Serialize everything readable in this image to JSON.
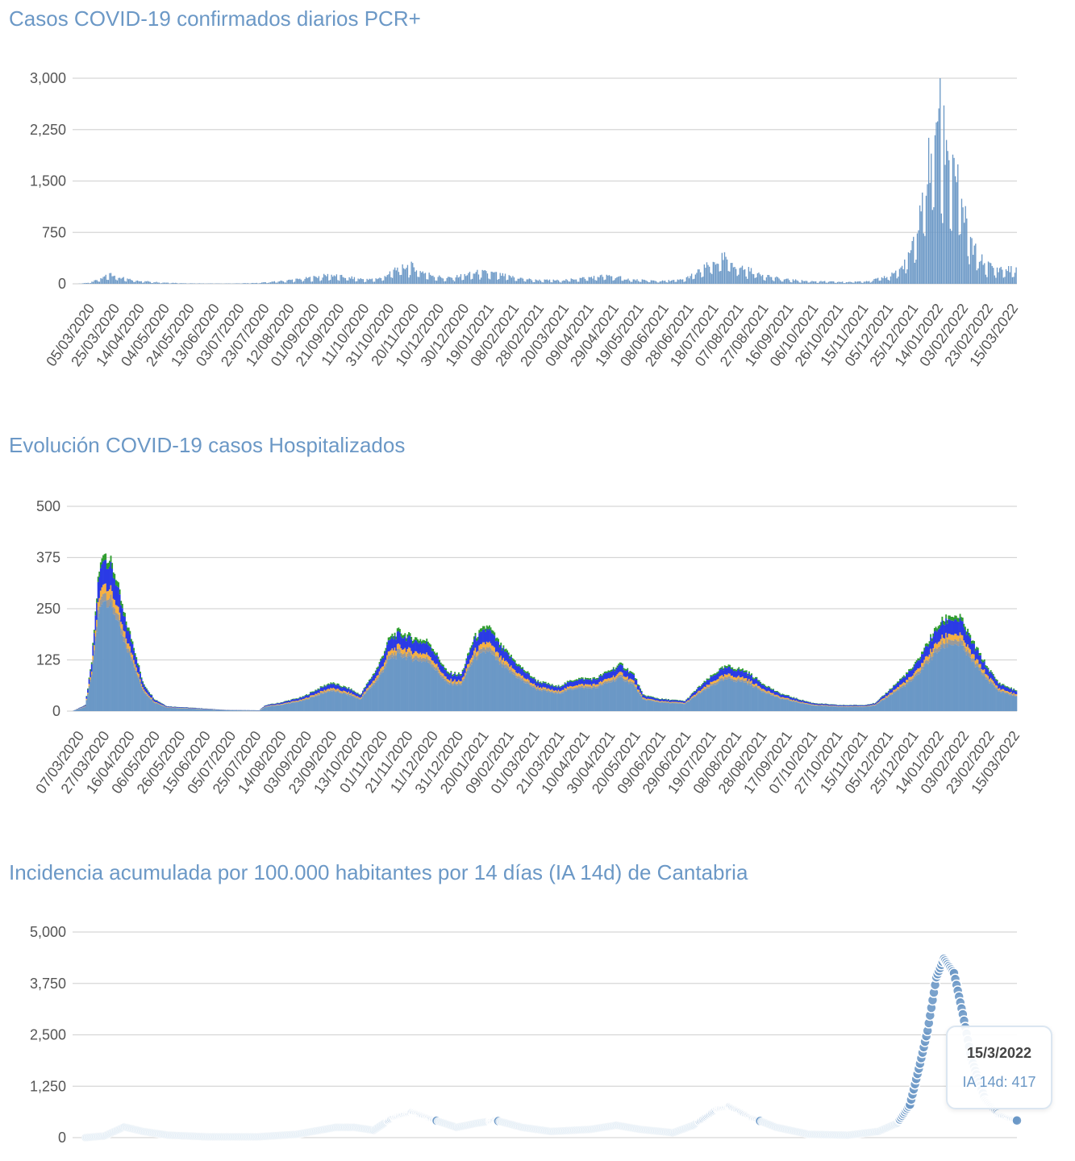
{
  "charts": [
    {
      "title": "Casos COVID-19 confirmados diarios PCR+",
      "chart_data": {
        "type": "bar",
        "title": "Casos COVID-19 confirmados diarios PCR+",
        "xlabel": "",
        "ylabel": "",
        "ylim": [
          0,
          3000
        ],
        "yticks": [
          "0",
          "750",
          "1,500",
          "2,250",
          "3,000"
        ],
        "ytick_values": [
          0,
          750,
          1500,
          2250,
          3000
        ],
        "x_start": "2020-03-05",
        "x_end": "2022-03-15",
        "xticks": [
          "05/03/2020",
          "25/03/2020",
          "14/04/2020",
          "04/05/2020",
          "24/05/2020",
          "13/06/2020",
          "03/07/2020",
          "23/07/2020",
          "12/08/2020",
          "01/09/2020",
          "21/09/2020",
          "11/10/2020",
          "31/10/2020",
          "20/11/2020",
          "10/12/2020",
          "30/12/2020",
          "19/01/2021",
          "08/02/2021",
          "28/02/2021",
          "20/03/2021",
          "09/04/2021",
          "29/04/2021",
          "19/05/2021",
          "08/06/2021",
          "28/06/2021",
          "18/07/2021",
          "07/08/2021",
          "27/08/2021",
          "16/09/2021",
          "06/10/2021",
          "26/10/2021",
          "15/11/2021",
          "05/12/2021",
          "25/12/2021",
          "14/01/2022",
          "03/02/2022",
          "23/02/2022",
          "15/03/2022"
        ],
        "color": "#6b98c6",
        "series": [
          {
            "values_at": [
              [
                "2020-03-05",
                0
              ],
              [
                "2020-03-15",
                20
              ],
              [
                "2020-03-25",
                90
              ],
              [
                "2020-03-30",
                170
              ],
              [
                "2020-04-05",
                100
              ],
              [
                "2020-04-15",
                60
              ],
              [
                "2020-04-25",
                40
              ],
              [
                "2020-05-10",
                20
              ],
              [
                "2020-06-01",
                6
              ],
              [
                "2020-07-01",
                4
              ],
              [
                "2020-07-25",
                12
              ],
              [
                "2020-08-12",
                40
              ],
              [
                "2020-09-01",
                80
              ],
              [
                "2020-09-20",
                130
              ],
              [
                "2020-10-01",
                100
              ],
              [
                "2020-10-20",
                60
              ],
              [
                "2020-10-31",
                90
              ],
              [
                "2020-11-10",
                210
              ],
              [
                "2020-11-22",
                270
              ],
              [
                "2020-12-05",
                150
              ],
              [
                "2020-12-20",
                80
              ],
              [
                "2020-12-30",
                110
              ],
              [
                "2021-01-15",
                170
              ],
              [
                "2021-01-25",
                160
              ],
              [
                "2021-02-10",
                100
              ],
              [
                "2021-02-28",
                55
              ],
              [
                "2021-03-20",
                50
              ],
              [
                "2021-04-05",
                80
              ],
              [
                "2021-04-20",
                110
              ],
              [
                "2021-04-29",
                120
              ],
              [
                "2021-05-15",
                60
              ],
              [
                "2021-06-08",
                40
              ],
              [
                "2021-06-25",
                60
              ],
              [
                "2021-07-05",
                150
              ],
              [
                "2021-07-18",
                300
              ],
              [
                "2021-07-28",
                380
              ],
              [
                "2021-08-08",
                250
              ],
              [
                "2021-08-25",
                150
              ],
              [
                "2021-09-10",
                70
              ],
              [
                "2021-10-01",
                40
              ],
              [
                "2021-11-01",
                25
              ],
              [
                "2021-11-20",
                45
              ],
              [
                "2021-12-05",
                120
              ],
              [
                "2021-12-15",
                240
              ],
              [
                "2021-12-25",
                600
              ],
              [
                "2022-01-01",
                1400
              ],
              [
                "2022-01-08",
                2000
              ],
              [
                "2022-01-12",
                2660
              ],
              [
                "2022-01-18",
                2100
              ],
              [
                "2022-01-25",
                1800
              ],
              [
                "2022-02-01",
                1100
              ],
              [
                "2022-02-08",
                550
              ],
              [
                "2022-02-18",
                300
              ],
              [
                "2022-02-28",
                220
              ],
              [
                "2022-03-15",
                210
              ]
            ]
          }
        ]
      }
    },
    {
      "title": "Evolución COVID-19 casos  Hospitalizados",
      "chart_data": {
        "type": "bar",
        "stacked": true,
        "title": "Evolución COVID-19 casos  Hospitalizados",
        "xlabel": "",
        "ylabel": "",
        "ylim": [
          0,
          500
        ],
        "yticks": [
          "0",
          "125",
          "250",
          "375",
          "500"
        ],
        "ytick_values": [
          0,
          125,
          250,
          375,
          500
        ],
        "x_start": "2020-03-07",
        "x_end": "2022-03-15",
        "xticks": [
          "07/03/2020",
          "27/03/2020",
          "16/04/2020",
          "06/05/2020",
          "26/05/2020",
          "15/06/2020",
          "05/07/2020",
          "25/07/2020",
          "14/08/2020",
          "03/09/2020",
          "23/09/2020",
          "13/10/2020",
          "01/11/2020",
          "21/11/2020",
          "11/12/2020",
          "31/12/2020",
          "20/01/2021",
          "09/02/2021",
          "01/03/2021",
          "21/03/2021",
          "10/04/2021",
          "30/04/2021",
          "20/05/2021",
          "09/06/2021",
          "29/06/2021",
          "19/07/2021",
          "08/08/2021",
          "28/08/2021",
          "17/09/2021",
          "07/10/2021",
          "27/10/2021",
          "15/11/2021",
          "05/12/2021",
          "25/12/2021",
          "14/01/2022",
          "03/02/2022",
          "23/02/2022",
          "15/03/2022"
        ],
        "colors": [
          "#6b98c6",
          "#9a9a9a",
          "#f5b042",
          "#2a3ae6",
          "#2f9e2f"
        ],
        "total": [
          [
            "2020-03-07",
            0
          ],
          [
            "2020-03-17",
            15
          ],
          [
            "2020-03-22",
            120
          ],
          [
            "2020-03-27",
            320
          ],
          [
            "2020-03-31",
            395
          ],
          [
            "2020-04-05",
            370
          ],
          [
            "2020-04-10",
            330
          ],
          [
            "2020-04-16",
            240
          ],
          [
            "2020-04-24",
            160
          ],
          [
            "2020-05-01",
            70
          ],
          [
            "2020-05-10",
            30
          ],
          [
            "2020-05-20",
            12
          ],
          [
            "2020-06-10",
            8
          ],
          [
            "2020-07-05",
            3
          ],
          [
            "2020-07-31",
            2
          ],
          [
            "2020-08-05",
            15
          ],
          [
            "2020-08-15",
            20
          ],
          [
            "2020-09-03",
            35
          ],
          [
            "2020-09-15",
            55
          ],
          [
            "2020-09-25",
            70
          ],
          [
            "2020-10-10",
            55
          ],
          [
            "2020-10-18",
            40
          ],
          [
            "2020-11-01",
            110
          ],
          [
            "2020-11-10",
            180
          ],
          [
            "2020-11-17",
            195
          ],
          [
            "2020-11-28",
            180
          ],
          [
            "2020-12-11",
            170
          ],
          [
            "2020-12-25",
            95
          ],
          [
            "2021-01-05",
            90
          ],
          [
            "2021-01-15",
            180
          ],
          [
            "2021-01-26",
            210
          ],
          [
            "2021-02-05",
            160
          ],
          [
            "2021-02-20",
            110
          ],
          [
            "2021-03-05",
            75
          ],
          [
            "2021-03-21",
            60
          ],
          [
            "2021-04-05",
            80
          ],
          [
            "2021-04-20",
            80
          ],
          [
            "2021-05-01",
            100
          ],
          [
            "2021-05-10",
            115
          ],
          [
            "2021-05-20",
            90
          ],
          [
            "2021-05-27",
            40
          ],
          [
            "2021-06-10",
            30
          ],
          [
            "2021-06-29",
            25
          ],
          [
            "2021-07-10",
            60
          ],
          [
            "2021-07-25",
            100
          ],
          [
            "2021-08-01",
            110
          ],
          [
            "2021-08-15",
            100
          ],
          [
            "2021-08-28",
            70
          ],
          [
            "2021-09-10",
            45
          ],
          [
            "2021-09-25",
            30
          ],
          [
            "2021-10-07",
            20
          ],
          [
            "2021-10-27",
            15
          ],
          [
            "2021-11-15",
            15
          ],
          [
            "2021-11-25",
            20
          ],
          [
            "2021-12-05",
            50
          ],
          [
            "2021-12-25",
            110
          ],
          [
            "2022-01-05",
            170
          ],
          [
            "2022-01-14",
            215
          ],
          [
            "2022-01-22",
            235
          ],
          [
            "2022-01-30",
            230
          ],
          [
            "2022-02-08",
            175
          ],
          [
            "2022-02-20",
            110
          ],
          [
            "2022-03-01",
            70
          ],
          [
            "2022-03-15",
            50
          ]
        ],
        "series": [
          {
            "name": "",
            "share": 0.7
          },
          {
            "name": "",
            "share": 0.05
          },
          {
            "name": "",
            "share": 0.06
          },
          {
            "name": "",
            "share": 0.15
          },
          {
            "name": "",
            "share": 0.04
          }
        ]
      }
    },
    {
      "title": "Incidencia acumulada por 100.000 habitantes por 14 días (IA 14d) de Cantabria",
      "chart_data": {
        "type": "scatter",
        "title": "Incidencia acumulada por 100.000 habitantes por 14 días (IA 14d) de Cantabria",
        "xlabel": "",
        "ylabel": "",
        "ylim": [
          0,
          5000
        ],
        "yticks": [
          "0",
          "1,250",
          "2,500",
          "3,750",
          "5,000"
        ],
        "ytick_values": [
          0,
          1250,
          2500,
          3750,
          5000
        ],
        "x_start": "2020-03-05",
        "x_end": "2022-03-15",
        "color": "#6b98c6",
        "series": [
          {
            "name": "IA 14d",
            "values_at": [
              [
                "2020-03-05",
                0
              ],
              [
                "2020-03-20",
                40
              ],
              [
                "2020-04-05",
                260
              ],
              [
                "2020-04-20",
                150
              ],
              [
                "2020-05-10",
                60
              ],
              [
                "2020-06-10",
                20
              ],
              [
                "2020-07-20",
                20
              ],
              [
                "2020-08-20",
                80
              ],
              [
                "2020-09-20",
                250
              ],
              [
                "2020-10-05",
                250
              ],
              [
                "2020-10-20",
                180
              ],
              [
                "2020-11-05",
                500
              ],
              [
                "2020-11-20",
                620
              ],
              [
                "2020-12-10",
                400
              ],
              [
                "2020-12-25",
                250
              ],
              [
                "2021-01-10",
                350
              ],
              [
                "2021-01-25",
                420
              ],
              [
                "2021-02-15",
                250
              ],
              [
                "2021-03-10",
                150
              ],
              [
                "2021-04-10",
                200
              ],
              [
                "2021-05-01",
                300
              ],
              [
                "2021-05-20",
                200
              ],
              [
                "2021-06-15",
                120
              ],
              [
                "2021-07-01",
                300
              ],
              [
                "2021-07-20",
                700
              ],
              [
                "2021-07-30",
                750
              ],
              [
                "2021-08-15",
                500
              ],
              [
                "2021-09-05",
                250
              ],
              [
                "2021-10-01",
                80
              ],
              [
                "2021-11-01",
                60
              ],
              [
                "2021-11-25",
                150
              ],
              [
                "2021-12-10",
                350
              ],
              [
                "2021-12-20",
                800
              ],
              [
                "2021-12-28",
                1800
              ],
              [
                "2022-01-03",
                2600
              ],
              [
                "2022-01-10",
                3900
              ],
              [
                "2022-01-16",
                4350
              ],
              [
                "2022-01-24",
                4000
              ],
              [
                "2022-01-31",
                3000
              ],
              [
                "2022-02-07",
                1900
              ],
              [
                "2022-02-18",
                900
              ],
              [
                "2022-03-01",
                550
              ],
              [
                "2022-03-15",
                417
              ]
            ]
          }
        ],
        "tooltip": {
          "date": "15/3/2022",
          "label": "IA 14d: 417"
        }
      }
    }
  ]
}
